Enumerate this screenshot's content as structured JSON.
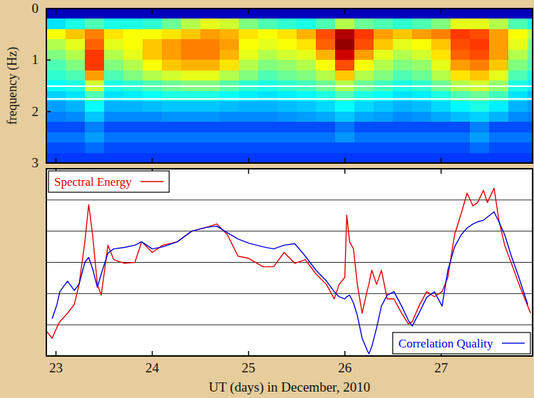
{
  "chart_data": [
    {
      "type": "heatmap",
      "ylabel": "frequency (Hz)",
      "x": [
        23.0,
        23.2,
        23.4,
        23.6,
        23.8,
        24.0,
        24.2,
        24.4,
        24.6,
        24.8,
        25.0,
        25.2,
        25.4,
        25.6,
        25.8,
        26.0,
        26.2,
        26.4,
        26.6,
        26.8,
        27.0,
        27.2,
        27.4,
        27.6,
        27.8,
        28.0
      ],
      "y": [
        0.1,
        0.3,
        0.5,
        0.7,
        0.9,
        1.1,
        1.3,
        1.5,
        1.7,
        1.9,
        2.1,
        2.3,
        2.5,
        2.7,
        2.9
      ],
      "values": [
        [
          0.06,
          0.06,
          0.06,
          0.06,
          0.06,
          0.06,
          0.06,
          0.06,
          0.06,
          0.06,
          0.06,
          0.06,
          0.06,
          0.06,
          0.06,
          0.06,
          0.06,
          0.06,
          0.06,
          0.06,
          0.06,
          0.06,
          0.06,
          0.06,
          0.06,
          0.06
        ],
        [
          0.35,
          0.4,
          0.45,
          0.4,
          0.4,
          0.42,
          0.48,
          0.55,
          0.6,
          0.58,
          0.5,
          0.45,
          0.42,
          0.4,
          0.45,
          0.55,
          0.48,
          0.45,
          0.42,
          0.45,
          0.5,
          0.6,
          0.6,
          0.55,
          0.45,
          0.4
        ],
        [
          0.62,
          0.68,
          0.75,
          0.65,
          0.62,
          0.62,
          0.65,
          0.68,
          0.72,
          0.7,
          0.65,
          0.62,
          0.65,
          0.7,
          0.8,
          0.95,
          0.82,
          0.72,
          0.68,
          0.72,
          0.75,
          0.82,
          0.8,
          0.72,
          0.62,
          0.55
        ],
        [
          0.55,
          0.6,
          0.78,
          0.6,
          0.62,
          0.68,
          0.72,
          0.75,
          0.75,
          0.72,
          0.62,
          0.6,
          0.62,
          0.65,
          0.78,
          0.98,
          0.8,
          0.68,
          0.6,
          0.62,
          0.68,
          0.8,
          0.82,
          0.72,
          0.6,
          0.5
        ],
        [
          0.5,
          0.55,
          0.82,
          0.55,
          0.6,
          0.68,
          0.72,
          0.75,
          0.75,
          0.7,
          0.6,
          0.55,
          0.58,
          0.6,
          0.7,
          0.92,
          0.72,
          0.6,
          0.55,
          0.58,
          0.65,
          0.78,
          0.8,
          0.72,
          0.55,
          0.48
        ],
        [
          0.45,
          0.5,
          0.82,
          0.5,
          0.55,
          0.62,
          0.68,
          0.7,
          0.7,
          0.65,
          0.55,
          0.5,
          0.52,
          0.55,
          0.62,
          0.8,
          0.62,
          0.55,
          0.5,
          0.52,
          0.6,
          0.72,
          0.75,
          0.68,
          0.5,
          0.45
        ],
        [
          0.42,
          0.45,
          0.72,
          0.45,
          0.5,
          0.55,
          0.58,
          0.6,
          0.6,
          0.55,
          0.5,
          0.45,
          0.48,
          0.5,
          0.55,
          0.68,
          0.55,
          0.5,
          0.45,
          0.48,
          0.55,
          0.65,
          0.68,
          0.6,
          0.45,
          0.4
        ],
        [
          0.38,
          0.4,
          0.58,
          0.4,
          0.42,
          0.45,
          0.48,
          0.5,
          0.5,
          0.46,
          0.42,
          0.4,
          0.42,
          0.44,
          0.48,
          0.55,
          0.48,
          0.44,
          0.4,
          0.42,
          0.48,
          0.55,
          0.58,
          0.52,
          0.4,
          0.36
        ],
        [
          0.33,
          0.35,
          0.45,
          0.35,
          0.36,
          0.38,
          0.4,
          0.4,
          0.4,
          0.38,
          0.36,
          0.35,
          0.36,
          0.37,
          0.4,
          0.45,
          0.4,
          0.38,
          0.35,
          0.36,
          0.4,
          0.45,
          0.48,
          0.44,
          0.35,
          0.32
        ],
        [
          0.28,
          0.3,
          0.38,
          0.3,
          0.3,
          0.31,
          0.32,
          0.32,
          0.32,
          0.31,
          0.3,
          0.3,
          0.31,
          0.32,
          0.34,
          0.38,
          0.34,
          0.32,
          0.3,
          0.31,
          0.34,
          0.37,
          0.4,
          0.36,
          0.3,
          0.28
        ],
        [
          0.25,
          0.26,
          0.32,
          0.26,
          0.26,
          0.26,
          0.27,
          0.27,
          0.27,
          0.26,
          0.26,
          0.26,
          0.27,
          0.28,
          0.29,
          0.32,
          0.29,
          0.28,
          0.26,
          0.27,
          0.29,
          0.31,
          0.33,
          0.3,
          0.26,
          0.25
        ],
        [
          0.2,
          0.2,
          0.25,
          0.2,
          0.2,
          0.2,
          0.2,
          0.2,
          0.2,
          0.2,
          0.2,
          0.2,
          0.2,
          0.2,
          0.2,
          0.24,
          0.2,
          0.2,
          0.2,
          0.2,
          0.2,
          0.2,
          0.25,
          0.2,
          0.2,
          0.2
        ],
        [
          0.24,
          0.24,
          0.28,
          0.24,
          0.24,
          0.24,
          0.24,
          0.24,
          0.24,
          0.24,
          0.24,
          0.24,
          0.24,
          0.24,
          0.24,
          0.27,
          0.24,
          0.24,
          0.24,
          0.24,
          0.24,
          0.24,
          0.28,
          0.24,
          0.24,
          0.24
        ],
        [
          0.2,
          0.2,
          0.23,
          0.2,
          0.2,
          0.2,
          0.2,
          0.2,
          0.2,
          0.2,
          0.2,
          0.2,
          0.2,
          0.2,
          0.2,
          0.2,
          0.2,
          0.2,
          0.2,
          0.2,
          0.2,
          0.2,
          0.23,
          0.2,
          0.2,
          0.2
        ],
        [
          0.18,
          0.18,
          0.18,
          0.18,
          0.18,
          0.18,
          0.18,
          0.18,
          0.18,
          0.18,
          0.18,
          0.18,
          0.18,
          0.18,
          0.18,
          0.18,
          0.18,
          0.18,
          0.18,
          0.18,
          0.18,
          0.18,
          0.18,
          0.18,
          0.18,
          0.18
        ]
      ],
      "zlim": [
        0,
        1
      ],
      "xlim": [
        22.9,
        27.95
      ],
      "ylim": [
        3,
        0
      ],
      "xticks": [
        23,
        24,
        25,
        26,
        27
      ],
      "yticks": [
        0,
        1,
        2,
        3
      ],
      "reference_lines": [
        1.5,
        1.75
      ],
      "tick_labels": "y"
    },
    {
      "type": "line",
      "xlabel": "UT (days) in December, 2010",
      "x": [
        22.9,
        22.96,
        23.01,
        23.04,
        23.12,
        23.19,
        23.24,
        23.3,
        23.34,
        23.38,
        23.43,
        23.47,
        23.54,
        23.6,
        23.71,
        23.82,
        23.89,
        24.0,
        24.11,
        24.26,
        24.41,
        24.56,
        24.67,
        24.78,
        24.89,
        25.0,
        25.15,
        25.26,
        25.37,
        25.48,
        25.59,
        25.7,
        25.81,
        25.89,
        25.94,
        26.0,
        26.02,
        26.05,
        26.09,
        26.13,
        26.18,
        26.23,
        26.25,
        26.28,
        26.33,
        26.38,
        26.44,
        26.51,
        26.59,
        26.66,
        26.7,
        26.77,
        26.85,
        26.93,
        27.01,
        27.07,
        27.14,
        27.21,
        27.27,
        27.33,
        27.38,
        27.44,
        27.48,
        27.55,
        27.6,
        27.66,
        27.73,
        27.81,
        27.9,
        27.93
      ],
      "series": [
        {
          "name": "Spectral Energy",
          "color": "#e00000",
          "legend": "upper left",
          "values": [
            0.8,
            0.57,
            0.92,
            1.1,
            1.37,
            1.65,
            2.29,
            3.66,
            4.85,
            3.89,
            2.29,
            1.95,
            3.55,
            3.09,
            2.97,
            3.0,
            3.66,
            3.32,
            3.55,
            3.66,
            4.0,
            4.12,
            4.23,
            3.89,
            3.2,
            3.13,
            2.86,
            2.86,
            3.32,
            2.97,
            3.09,
            2.63,
            2.29,
            1.83,
            2.29,
            2.52,
            4.51,
            3.66,
            3.43,
            2.29,
            1.37,
            2.06,
            2.3,
            2.75,
            2.29,
            2.75,
            1.83,
            1.83,
            1.37,
            1.03,
            1.1,
            1.6,
            2.06,
            1.9,
            2.06,
            2.52,
            3.89,
            4.58,
            5.22,
            4.81,
            4.92,
            5.31,
            4.92,
            5.38,
            4.35,
            3.55,
            2.97,
            2.29,
            1.6,
            1.37
          ]
        },
        {
          "name": "Correlation Quality",
          "color": "#0000e0",
          "legend": "lower right",
          "values": [
            null,
            1.19,
            1.65,
            2.06,
            2.4,
            2.1,
            2.3,
            3.0,
            3.16,
            2.8,
            2.2,
            2.63,
            3.3,
            3.43,
            3.48,
            3.55,
            3.66,
            3.43,
            3.5,
            3.66,
            4.0,
            4.12,
            4.16,
            3.95,
            3.75,
            3.62,
            3.5,
            3.43,
            3.55,
            3.6,
            3.2,
            2.75,
            2.4,
            2.06,
            1.9,
            1.83,
            1.9,
            1.95,
            1.7,
            1.3,
            0.57,
            0.2,
            0.07,
            0.3,
            0.9,
            1.6,
            1.95,
            2.06,
            1.6,
            1.14,
            0.96,
            1.37,
            1.88,
            2.06,
            1.6,
            2.75,
            3.5,
            3.89,
            4.1,
            4.23,
            4.3,
            4.35,
            4.45,
            4.62,
            4.3,
            3.89,
            3.2,
            2.5,
            1.65,
            null
          ]
        }
      ],
      "xlim": [
        22.9,
        27.95
      ],
      "ylim": [
        0,
        6
      ],
      "xticks": [
        23,
        24,
        25,
        26,
        27
      ],
      "yticks": [
        1,
        2,
        3,
        4,
        5
      ],
      "grid": true,
      "tick_labels": "x"
    }
  ]
}
